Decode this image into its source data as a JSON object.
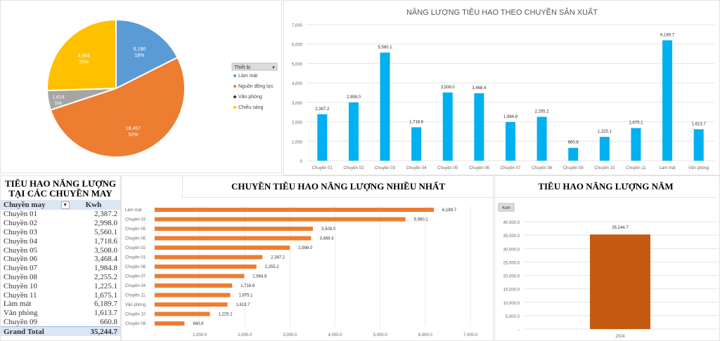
{
  "colors": {
    "blue": "#5b9bd5",
    "orange": "#ed7d31",
    "gray": "#a5a5a5",
    "yellow": "#ffc000",
    "column": "#00b0f0",
    "hbar": "#ed7d31",
    "year": "#c55a11"
  },
  "chart_data": [
    {
      "type": "pie",
      "legend_title": "Thiết bị",
      "legend_placement": "right",
      "slices": [
        {
          "name": "Làm mát",
          "value": 6190,
          "label": "6,190",
          "pct": "18%"
        },
        {
          "name": "Nguồn động lực",
          "value": 18457,
          "label": "18,457",
          "pct": "52%"
        },
        {
          "name": "Văn phòng",
          "value": 1614,
          "label": "1,614",
          "pct": "5%"
        },
        {
          "name": "Chiếu sáng",
          "value": 8984,
          "label": "8,984",
          "pct": "25%"
        }
      ]
    },
    {
      "type": "bar",
      "title": "NĂNG LƯỢNG TIÊU HAO THEO CHUYỀN SẢN XUẤT",
      "ylim": [
        0,
        7000
      ],
      "yticks": [
        "0",
        "1,000",
        "2,000",
        "3,000",
        "4,000",
        "5,000",
        "6,000",
        "7,000"
      ],
      "categories": [
        "Chuyền 01",
        "Chuyền 02",
        "Chuyền 03",
        "Chuyền 04",
        "Chuyền 05",
        "Chuyền 06",
        "Chuyền 07",
        "Chuyền 08",
        "Chuyền 09",
        "Chuyền 10",
        "Chuyền 11",
        "Làm mát",
        "Văn phòng"
      ],
      "values": [
        2387.2,
        2998.0,
        5560.1,
        1718.6,
        3508.0,
        3468.4,
        1984.8,
        2255.2,
        660.8,
        1225.1,
        1675.1,
        6189.7,
        1613.7
      ],
      "labels": [
        "2,387.2",
        "2,998.0",
        "5,560.1",
        "1,718.6",
        "3,508.0",
        "3,468.4",
        "1,984.8",
        "2,255.2",
        "660.8",
        "1,225.1",
        "1,675.1",
        "6,189.7",
        "1,613.7"
      ]
    },
    {
      "type": "bar",
      "orientation": "horizontal",
      "title": "CHUYỀN TIÊU HAO NĂNG LƯỢNG NHIỀU NHẤT",
      "xlim": [
        0,
        7000
      ],
      "xticks": [
        "-",
        "1,000.0",
        "2,000.0",
        "3,000.0",
        "4,000.0",
        "5,000.0",
        "6,000.0",
        "7,000.0"
      ],
      "categories": [
        "Làm mát",
        "Chuyền 03",
        "Chuyền 05",
        "Chuyền 06",
        "Chuyền 02",
        "Chuyền 01",
        "Chuyền 08",
        "Chuyền 07",
        "Chuyền 04",
        "Chuyền 11",
        "Văn phòng",
        "Chuyền 10",
        "Chuyền 09"
      ],
      "values": [
        6189.7,
        5560.1,
        3508.0,
        3468.4,
        2998.0,
        2387.2,
        2255.2,
        1984.8,
        1718.6,
        1675.1,
        1613.7,
        1225.1,
        660.8
      ],
      "labels": [
        "6,189.7",
        "5,560.1",
        "3,508.0",
        "3,468.4",
        "2,998.0",
        "2,387.2",
        "2,255.2",
        "1,984.8",
        "1,718.6",
        "1,675.1",
        "1,613.7",
        "1,225.1",
        "660.8"
      ]
    },
    {
      "type": "bar",
      "title": "TIÊU HAO NĂNG LƯỢNG NĂM",
      "field_button": "Kwh",
      "ylim": [
        0,
        40000
      ],
      "yticks": [
        "-",
        "5,000.0",
        "10,000.0",
        "15,000.0",
        "20,000.0",
        "25,000.0",
        "30,000.0",
        "35,000.0",
        "40,000.0"
      ],
      "categories": [
        "2024"
      ],
      "values": [
        35244.7
      ],
      "labels": [
        "35,244.7"
      ]
    }
  ],
  "table": {
    "title": "TIÊU HAO NĂNG LƯỢNG TẠI CÁC CHUYỀN MAY",
    "col1": "Chuyền may",
    "col2": "Kwh",
    "rows": [
      [
        "Chuyền 01",
        "2,387.2"
      ],
      [
        "Chuyền 02",
        "2,998.0"
      ],
      [
        "Chuyền 03",
        "5,560.1"
      ],
      [
        "Chuyền 04",
        "1,718.6"
      ],
      [
        "Chuyền 05",
        "3,508.0"
      ],
      [
        "Chuyền 06",
        "3,468.4"
      ],
      [
        "Chuyền 07",
        "1,984.8"
      ],
      [
        "Chuyền 08",
        "2,255.2"
      ],
      [
        "Chuyền 10",
        "1,225.1"
      ],
      [
        "Chuyền 11",
        "1,675.1"
      ],
      [
        "Làm mát",
        "6,189.7"
      ],
      [
        "Văn phòng",
        "1,613.7"
      ],
      [
        "Chuyền 09",
        "660.8"
      ]
    ],
    "total_label": "Grand Total",
    "total_value": "35,244.7"
  }
}
